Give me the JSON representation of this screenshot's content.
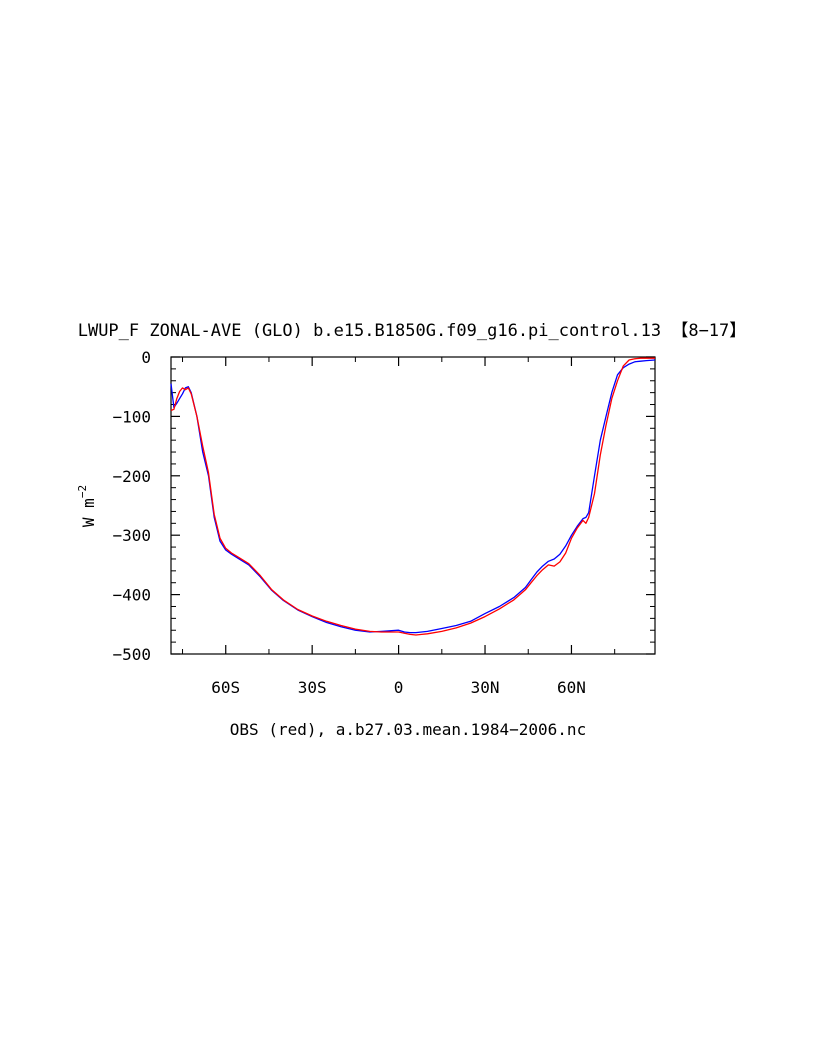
{
  "chart_data": {
    "type": "line",
    "title": "LWUP_F ZONAL-AVE (GLO) b.e15.B1850G.f09_g16.pi_control.13 【8−17】",
    "ylabel": "W m",
    "ylabel_sup": "−2",
    "xlabel": "OBS (red), a.b27.03.mean.1984−2006.nc",
    "xlim": [
      -79,
      89
    ],
    "ylim": [
      -500,
      0
    ],
    "x_ticks": [
      {
        "value": -60,
        "label": "60S"
      },
      {
        "value": -30,
        "label": "30S"
      },
      {
        "value": 0,
        "label": "0"
      },
      {
        "value": 30,
        "label": "30N"
      },
      {
        "value": 60,
        "label": "60N"
      }
    ],
    "y_ticks": [
      {
        "value": 0,
        "label": "0"
      },
      {
        "value": -100,
        "label": "−100"
      },
      {
        "value": -200,
        "label": "−200"
      },
      {
        "value": -300,
        "label": "−300"
      },
      {
        "value": -400,
        "label": "−400"
      },
      {
        "value": -500,
        "label": "−500"
      }
    ],
    "grid": false,
    "legend": "none",
    "series": [
      {
        "color": "#0000ff",
        "x": [
          -79,
          -78,
          -77,
          -76,
          -75,
          -74,
          -73,
          -72,
          -70,
          -68,
          -66,
          -64,
          -62,
          -60,
          -58,
          -56,
          -52,
          -48,
          -44,
          -40,
          -35,
          -30,
          -25,
          -20,
          -15,
          -10,
          -6,
          -3,
          0,
          2,
          4,
          6,
          8,
          10,
          15,
          20,
          25,
          30,
          35,
          40,
          44,
          46,
          48,
          50,
          52,
          54,
          56,
          58,
          60,
          62,
          64,
          65,
          66,
          68,
          70,
          72,
          74,
          76,
          78,
          80,
          82,
          84,
          86,
          89
        ],
        "y": [
          -45,
          -85,
          -78,
          -70,
          -62,
          -52,
          -50,
          -60,
          -100,
          -160,
          -200,
          -270,
          -310,
          -325,
          -332,
          -338,
          -350,
          -370,
          -393,
          -410,
          -426,
          -437,
          -447,
          -454,
          -460,
          -463,
          -462,
          -461,
          -460,
          -463,
          -464,
          -464,
          -463,
          -462,
          -457,
          -452,
          -445,
          -432,
          -420,
          -405,
          -388,
          -375,
          -362,
          -352,
          -344,
          -340,
          -332,
          -318,
          -300,
          -285,
          -272,
          -270,
          -262,
          -200,
          -140,
          -100,
          -60,
          -30,
          -18,
          -12,
          -8,
          -7,
          -6,
          -5
        ]
      },
      {
        "color": "#ff0000",
        "x": [
          -79,
          -78,
          -77,
          -76,
          -75,
          -74,
          -73,
          -72,
          -70,
          -68,
          -66,
          -64,
          -62,
          -60,
          -58,
          -56,
          -52,
          -48,
          -44,
          -40,
          -35,
          -30,
          -25,
          -20,
          -15,
          -10,
          -6,
          -3,
          0,
          2,
          4,
          6,
          8,
          10,
          15,
          20,
          25,
          30,
          35,
          40,
          44,
          46,
          48,
          50,
          52,
          54,
          56,
          58,
          60,
          62,
          64,
          65,
          66,
          68,
          70,
          72,
          74,
          76,
          78,
          80,
          82,
          84,
          86,
          89
        ],
        "y": [
          -90,
          -88,
          -70,
          -58,
          -52,
          -55,
          -52,
          -62,
          -100,
          -150,
          -195,
          -265,
          -305,
          -322,
          -330,
          -336,
          -348,
          -368,
          -392,
          -409,
          -425,
          -436,
          -445,
          -452,
          -458,
          -462,
          -463,
          -463,
          -463,
          -465,
          -467,
          -468,
          -467,
          -466,
          -462,
          -456,
          -448,
          -437,
          -424,
          -409,
          -392,
          -380,
          -368,
          -358,
          -350,
          -352,
          -345,
          -330,
          -305,
          -288,
          -275,
          -280,
          -270,
          -230,
          -165,
          -115,
          -70,
          -40,
          -15,
          -5,
          -3,
          -2,
          -2,
          -2
        ]
      }
    ]
  }
}
